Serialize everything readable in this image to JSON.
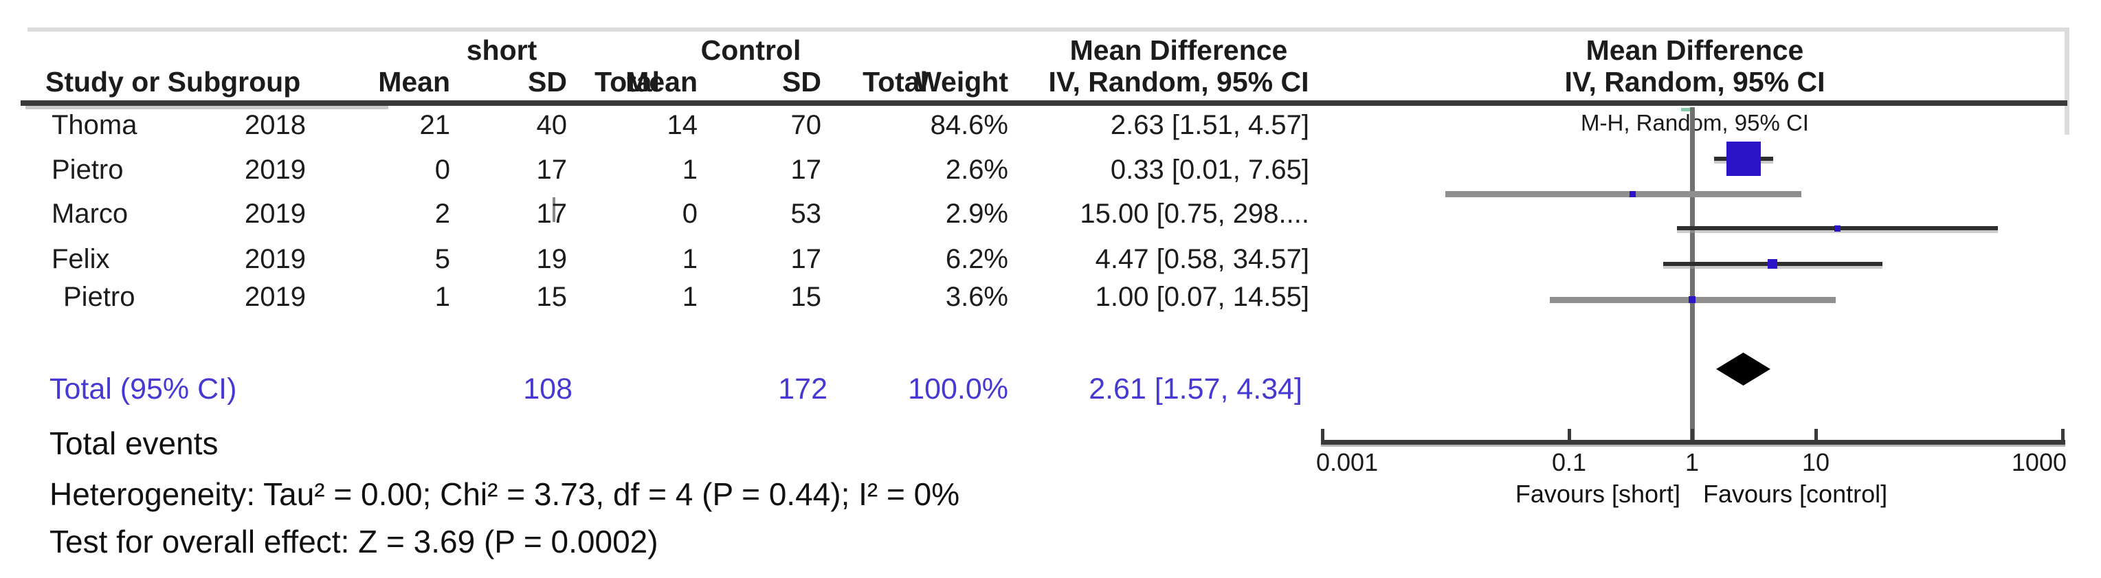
{
  "header": {
    "study_col": "Study or Subgroup",
    "group_left": "short",
    "group_right": "Control",
    "cols": {
      "mean": "Mean",
      "sd": "SD",
      "total": "Total",
      "weight": "Weight"
    },
    "md_table_title": "Mean Difference",
    "md_table_sub": "IV, Random, 95% CI",
    "plot_title": "Mean Difference",
    "plot_sub": "IV, Random, 95% CI",
    "plot_sub2": "M-H, Random, 95% CI"
  },
  "studies": [
    {
      "name": "Thoma",
      "year": "2018",
      "mean1": "21",
      "sd1": "40",
      "total1": "",
      "mean2": "14",
      "sd2": "70",
      "total2": "",
      "weight": "84.6%",
      "ci_text": "2.63 [1.51, 4.57]",
      "line": "dark",
      "indent": false,
      "cursor": false
    },
    {
      "name": "Pietro",
      "year": "2019",
      "mean1": "0",
      "sd1": "17",
      "total1": "",
      "mean2": "1",
      "sd2": "17",
      "total2": "",
      "weight": "2.6%",
      "ci_text": "0.33 [0.01, 7.65]",
      "line": "gray",
      "indent": false,
      "cursor": false
    },
    {
      "name": "Marco",
      "year": "2019",
      "mean1": "2",
      "sd1": "17",
      "total1": "",
      "mean2": "0",
      "sd2": "53",
      "total2": "",
      "weight": "2.9%",
      "ci_text": "15.00 [0.75, 298....",
      "line": "dark",
      "indent": false,
      "cursor": true
    },
    {
      "name": "Felix",
      "year": "2019",
      "mean1": "5",
      "sd1": "19",
      "total1": "",
      "mean2": "1",
      "sd2": "17",
      "total2": "",
      "weight": "6.2%",
      "ci_text": "4.47 [0.58, 34.57]",
      "line": "dark",
      "indent": false,
      "cursor": false
    },
    {
      "name": "Pietro",
      "year": "2019",
      "mean1": "1",
      "sd1": "15",
      "total1": "",
      "mean2": "1",
      "sd2": "15",
      "total2": "",
      "weight": "3.6%",
      "ci_text": "1.00 [0.07, 14.55]",
      "line": "gray",
      "indent": true,
      "cursor": false
    }
  ],
  "totals": {
    "label": "Total (95% CI)",
    "total1": "108",
    "total2": "172",
    "weight": "100.0%",
    "ci_text": "2.61 [1.57, 4.34]"
  },
  "footer": {
    "total_events": "Total events",
    "heterogeneity": "Heterogeneity: Tau² = 0.00; Chi² = 3.73, df = 4 (P = 0.44); I² = 0%",
    "overall_effect": "Test for overall effect: Z = 3.69 (P = 0.0002)"
  },
  "colors": {
    "marker_blue": "#2b13c8",
    "total_text_blue": "#4639d2",
    "diamond_black": "#000000",
    "null_line_gray": "#707070"
  },
  "chart_data": {
    "type": "scatter",
    "variant": "forest-plot",
    "title": "Mean Difference",
    "subtitle": "IV, Random, 95% CI",
    "x_scale": "log",
    "x_range": [
      0.001,
      1000
    ],
    "x_tick_values": [
      0.001,
      0.1,
      1,
      10,
      1000
    ],
    "x_tick_labels": [
      "0.001",
      "0.1",
      "1",
      "10",
      "1000"
    ],
    "null_line": 1,
    "favours_left": "Favours [short]",
    "favours_right": "Favours [control]",
    "points": [
      {
        "label": "Thoma 2018",
        "estimate": 2.63,
        "ci_low": 1.51,
        "ci_high": 4.57,
        "weight_pct": 84.6
      },
      {
        "label": "Pietro 2019",
        "estimate": 0.33,
        "ci_low": 0.01,
        "ci_high": 7.65,
        "weight_pct": 2.6
      },
      {
        "label": "Marco 2019",
        "estimate": 15.0,
        "ci_low": 0.75,
        "ci_high": 298,
        "weight_pct": 2.9
      },
      {
        "label": "Felix 2019",
        "estimate": 4.47,
        "ci_low": 0.58,
        "ci_high": 34.57,
        "weight_pct": 6.2
      },
      {
        "label": "Pietro 2019",
        "estimate": 1.0,
        "ci_low": 0.07,
        "ci_high": 14.55,
        "weight_pct": 3.6
      }
    ],
    "summary": {
      "label": "Total (95% CI)",
      "estimate": 2.61,
      "ci_low": 1.57,
      "ci_high": 4.34,
      "weight_pct": 100.0
    }
  }
}
